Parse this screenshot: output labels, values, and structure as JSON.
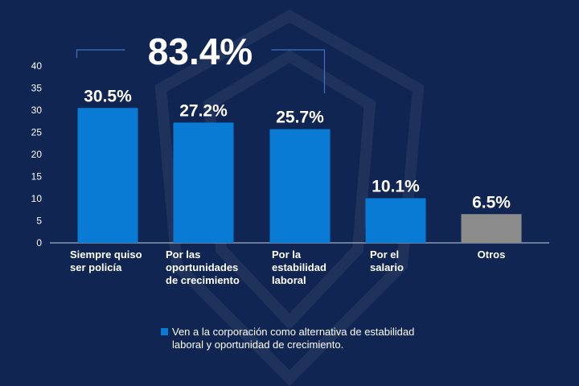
{
  "chart_data": {
    "type": "bar",
    "categories": [
      [
        "Siempre quiso",
        "ser policía"
      ],
      [
        "Por las",
        "oportunidades",
        "de crecimiento"
      ],
      [
        "Por la",
        "estabilidad",
        "laboral"
      ],
      [
        "Por el",
        "salario"
      ],
      [
        "Otros"
      ]
    ],
    "values": [
      30.5,
      27.2,
      25.7,
      10.1,
      6.5
    ],
    "data_labels": [
      "30.5%",
      "27.2%",
      "25.7%",
      "10.1%",
      "6.5%"
    ],
    "bar_colors": [
      "#0a7bd4",
      "#0a7bd4",
      "#0a7bd4",
      "#0a7bd4",
      "#8c8c8c"
    ],
    "ylim": [
      0,
      40
    ],
    "yticks": [
      0,
      5,
      10,
      15,
      20,
      25,
      30,
      35,
      40
    ],
    "xlabel": "",
    "ylabel": "",
    "bracket_total": "83.4%",
    "bracket_span": [
      0,
      2
    ],
    "legend": {
      "color": "#0a7bd4",
      "lines": [
        "Ven a la corporación como alternativa de estabilidad",
        "laboral  y oportunidad de crecimiento."
      ]
    }
  },
  "colors": {
    "background": "#102552",
    "text": "#ffffff",
    "axis": "#c8d0e0"
  }
}
